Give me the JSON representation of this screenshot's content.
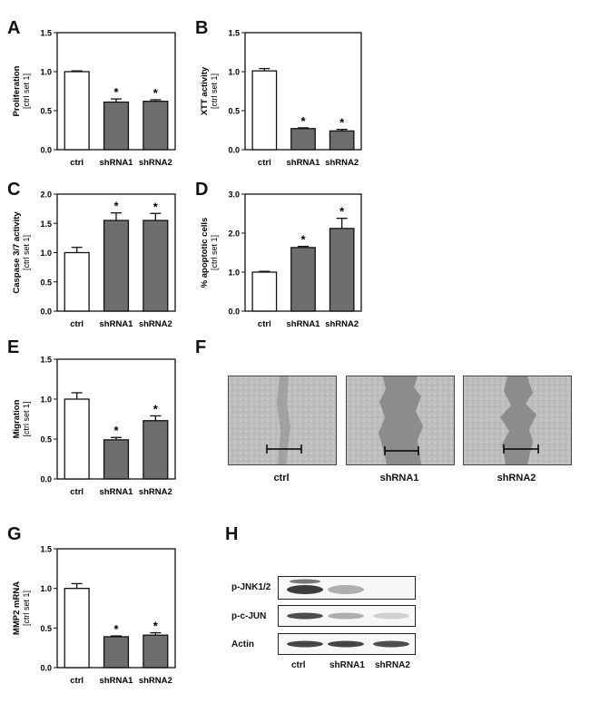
{
  "panel_letters": {
    "A": "A",
    "B": "B",
    "C": "C",
    "D": "D",
    "E": "E",
    "F": "F",
    "G": "G",
    "H": "H"
  },
  "colors": {
    "control_bar": "#ffffff",
    "shrna_bar": "#6e6e6e",
    "axis": "#111111"
  },
  "chart_data": [
    {
      "panel": "A",
      "type": "bar",
      "categories": [
        "ctrl",
        "shRNA1",
        "shRNA2"
      ],
      "values": [
        1.0,
        0.61,
        0.62
      ],
      "errors": [
        0.01,
        0.04,
        0.02
      ],
      "significant": [
        false,
        true,
        true
      ],
      "ylabel": "Proliferation",
      "ylabel2": "[ctrl set 1]",
      "ylim": [
        0,
        1.5
      ],
      "yticks": [
        "0.0",
        "0.5",
        "1.0",
        "1.5"
      ],
      "star": "*"
    },
    {
      "panel": "B",
      "type": "bar",
      "categories": [
        "ctrl",
        "shRNA1",
        "shRNA2"
      ],
      "values": [
        1.01,
        0.27,
        0.24
      ],
      "errors": [
        0.03,
        0.01,
        0.02
      ],
      "significant": [
        false,
        true,
        true
      ],
      "ylabel": "XTT activity",
      "ylabel2": "[ctrl set 1]",
      "ylim": [
        0,
        1.5
      ],
      "yticks": [
        "0.0",
        "0.5",
        "1.0",
        "1.5"
      ],
      "star": "*"
    },
    {
      "panel": "C",
      "type": "bar",
      "categories": [
        "ctrl",
        "shRNA1",
        "shRNA2"
      ],
      "values": [
        1.0,
        1.55,
        1.55
      ],
      "errors": [
        0.09,
        0.13,
        0.12
      ],
      "significant": [
        false,
        true,
        true
      ],
      "ylabel": "Caspase 3/7 activity",
      "ylabel2": "[ctrl set 1]",
      "ylim": [
        0,
        2.0
      ],
      "yticks": [
        "0.0",
        "0.5",
        "1.0",
        "1.5",
        "2.0"
      ],
      "star": "*"
    },
    {
      "panel": "D",
      "type": "bar",
      "categories": [
        "ctrl",
        "shRNA1",
        "shRNA2"
      ],
      "values": [
        1.0,
        1.63,
        2.12
      ],
      "errors": [
        0.02,
        0.03,
        0.26
      ],
      "significant": [
        false,
        true,
        true
      ],
      "ylabel": "% apoptotic cells",
      "ylabel2": "[ctrl set 1]",
      "ylim": [
        0,
        3.0
      ],
      "yticks": [
        "0.0",
        "1.0",
        "2.0",
        "3.0"
      ],
      "star": "*"
    },
    {
      "panel": "E",
      "type": "bar",
      "categories": [
        "ctrl",
        "shRNA1",
        "shRNA2"
      ],
      "values": [
        1.0,
        0.49,
        0.73
      ],
      "errors": [
        0.08,
        0.03,
        0.06
      ],
      "significant": [
        false,
        true,
        true
      ],
      "ylabel": "Migration",
      "ylabel2": "[ctrl set 1]",
      "ylim": [
        0,
        1.5
      ],
      "yticks": [
        "0.0",
        "0.5",
        "1.0",
        "1.5"
      ],
      "star": "*"
    },
    {
      "panel": "G",
      "type": "bar",
      "categories": [
        "ctrl",
        "shRNA1",
        "shRNA2"
      ],
      "values": [
        1.0,
        0.39,
        0.41
      ],
      "errors": [
        0.06,
        0.01,
        0.03
      ],
      "significant": [
        false,
        true,
        true
      ],
      "ylabel": "MMP2 mRNA",
      "ylabel2": "[ctrl set 1]",
      "ylim": [
        0,
        1.5
      ],
      "yticks": [
        "0.0",
        "0.5",
        "1.0",
        "1.5"
      ],
      "star": "*"
    }
  ],
  "migration_images": {
    "captions": [
      "ctrl",
      "shRNA1",
      "shRNA2"
    ]
  },
  "western_blot": {
    "rows": [
      "p-JNK1/2",
      "p-c-JUN",
      "Actin"
    ],
    "lanes": [
      "ctrl",
      "shRNA1",
      "shRNA2"
    ],
    "intensity": [
      [
        1.0,
        0.35,
        0.0
      ],
      [
        0.9,
        0.35,
        0.15
      ],
      [
        0.95,
        0.95,
        0.9
      ]
    ]
  }
}
